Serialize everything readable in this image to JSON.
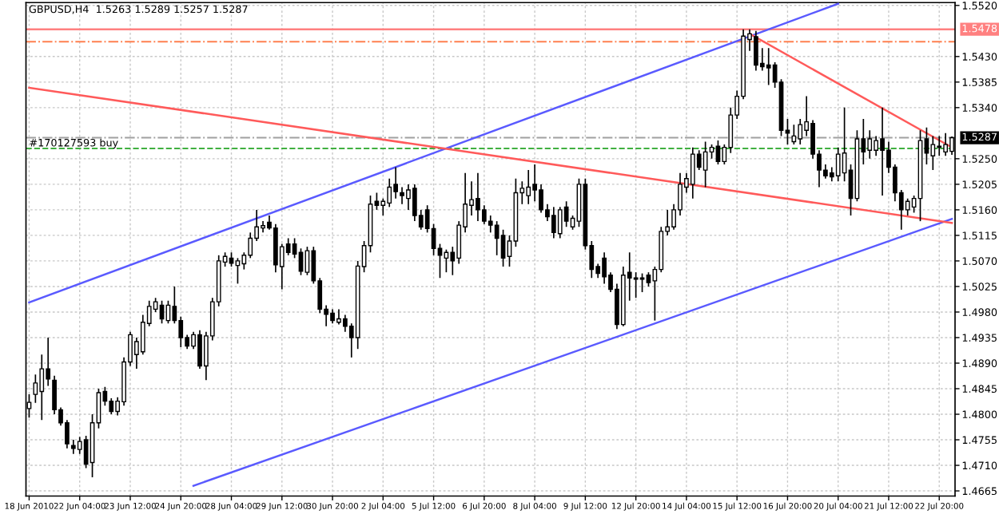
{
  "chart_data": {
    "type": "candlestick",
    "title": "GBPUSD,H4  1.5263 1.5289 1.5257 1.5287",
    "categories": [
      "18 Jun 2010",
      null,
      null,
      null,
      null,
      null,
      null,
      null,
      "22 Jun 04:00",
      null,
      null,
      null,
      null,
      null,
      null,
      null,
      "23 Jun 12:00",
      null,
      null,
      null,
      null,
      null,
      null,
      null,
      "24 Jun 20:00",
      null,
      null,
      null,
      null,
      null,
      null,
      null,
      "28 Jun 04:00",
      null,
      null,
      null,
      null,
      null,
      null,
      null,
      "29 Jun 12:00",
      null,
      null,
      null,
      null,
      null,
      null,
      null,
      "30 Jun 20:00",
      null,
      null,
      null,
      null,
      null,
      null,
      null,
      "2 Jul 04:00",
      null,
      null,
      null,
      null,
      null,
      null,
      null,
      "5 Jul 12:00",
      null,
      null,
      null,
      null,
      null,
      null,
      null,
      "6 Jul 20:00",
      null,
      null,
      null,
      null,
      null,
      null,
      null,
      "8 Jul 04:00",
      null,
      null,
      null,
      null,
      null,
      null,
      null,
      "9 Jul 12:00",
      null,
      null,
      null,
      null,
      null,
      null,
      null,
      "12 Jul 20:00",
      null,
      null,
      null,
      null,
      null,
      null,
      null,
      "14 Jul 04:00",
      null,
      null,
      null,
      null,
      null,
      null,
      null,
      "15 Jul 12:00",
      null,
      null,
      null,
      null,
      null,
      null,
      null,
      "16 Jul 20:00",
      null,
      null,
      null,
      null,
      null,
      null,
      null,
      "20 Jul 04:00",
      null,
      null,
      null,
      null,
      null,
      null,
      null,
      "21 Jul 12:00",
      null,
      null,
      null,
      null,
      null,
      null,
      null,
      "22 Jul 20:00",
      null,
      null
    ],
    "ohlc": [
      [
        1.481,
        1.4835,
        1.4794,
        1.4821
      ],
      [
        1.4835,
        1.487,
        1.482,
        1.4855
      ],
      [
        1.484,
        1.4905,
        1.479,
        1.488
      ],
      [
        1.488,
        1.4935,
        1.485,
        1.4862
      ],
      [
        1.486,
        1.4868,
        1.48,
        1.4808
      ],
      [
        1.4808,
        1.4812,
        1.478,
        1.4785
      ],
      [
        1.4785,
        1.479,
        1.474,
        1.4748
      ],
      [
        1.4745,
        1.4755,
        1.473,
        1.474
      ],
      [
        1.4738,
        1.476,
        1.473,
        1.4752
      ],
      [
        1.4755,
        1.4762,
        1.4705,
        1.4712
      ],
      [
        1.4715,
        1.48,
        1.4689,
        1.4785
      ],
      [
        1.4785,
        1.4845,
        1.4775,
        1.4838
      ],
      [
        1.484,
        1.4848,
        1.4815,
        1.4823
      ],
      [
        1.4823,
        1.4828,
        1.48,
        1.4805
      ],
      [
        1.4805,
        1.483,
        1.4798,
        1.4823
      ],
      [
        1.4822,
        1.49,
        1.4815,
        1.4892
      ],
      [
        1.4892,
        1.4945,
        1.4885,
        1.494
      ],
      [
        1.4905,
        1.4935,
        1.488,
        1.4928
      ],
      [
        1.491,
        1.4975,
        1.4905,
        1.4962
      ],
      [
        1.496,
        1.5,
        1.4955,
        1.499
      ],
      [
        1.4985,
        1.5005,
        1.498,
        1.4998
      ],
      [
        1.4992,
        1.5,
        1.496,
        1.4968
      ],
      [
        1.4965,
        1.5,
        1.496,
        1.4992
      ],
      [
        1.499,
        1.5025,
        1.496,
        1.4965
      ],
      [
        1.4965,
        1.4972,
        1.4918,
        1.4935
      ],
      [
        1.4935,
        1.494,
        1.4915,
        1.492
      ],
      [
        1.492,
        1.4945,
        1.4915,
        1.494
      ],
      [
        1.494,
        1.4948,
        1.488,
        1.4885
      ],
      [
        1.4885,
        1.4945,
        1.486,
        1.4938
      ],
      [
        1.4938,
        1.5005,
        1.493,
        1.4998
      ],
      [
        1.4998,
        1.508,
        1.499,
        1.507
      ],
      [
        1.5068,
        1.5085,
        1.506,
        1.5078
      ],
      [
        1.5075,
        1.5085,
        1.506,
        1.5066
      ],
      [
        1.5062,
        1.5075,
        1.503,
        1.507
      ],
      [
        1.5065,
        1.5085,
        1.5055,
        1.508
      ],
      [
        1.508,
        1.512,
        1.5075,
        1.511
      ],
      [
        1.511,
        1.516,
        1.5105,
        1.513
      ],
      [
        1.5128,
        1.514,
        1.512,
        1.5132
      ],
      [
        1.5138,
        1.515,
        1.5125,
        1.5128
      ],
      [
        1.5128,
        1.5135,
        1.505,
        1.5063
      ],
      [
        1.506,
        1.51,
        1.502,
        1.5095
      ],
      [
        1.51,
        1.511,
        1.508,
        1.5085
      ],
      [
        1.51,
        1.511,
        1.5075,
        1.5082
      ],
      [
        1.5085,
        1.5092,
        1.5045,
        1.5052
      ],
      [
        1.505,
        1.5095,
        1.5045,
        1.5088
      ],
      [
        1.5088,
        1.5095,
        1.503,
        1.5035
      ],
      [
        1.5035,
        1.504,
        1.4978,
        1.4985
      ],
      [
        1.4985,
        1.4992,
        1.4955,
        1.4976
      ],
      [
        1.4978,
        1.4985,
        1.496,
        1.4965
      ],
      [
        1.4962,
        1.4985,
        1.4958,
        1.4968
      ],
      [
        1.4968,
        1.4975,
        1.4945,
        1.4955
      ],
      [
        1.4955,
        1.496,
        1.49,
        1.4935
      ],
      [
        1.4935,
        1.507,
        1.4915,
        1.5061
      ],
      [
        1.506,
        1.5105,
        1.505,
        1.5097
      ],
      [
        1.5097,
        1.5185,
        1.5085,
        1.517
      ],
      [
        1.5175,
        1.519,
        1.516,
        1.5168
      ],
      [
        1.5168,
        1.518,
        1.515,
        1.5175
      ],
      [
        1.5172,
        1.5215,
        1.5165,
        1.52
      ],
      [
        1.5205,
        1.5235,
        1.518,
        1.5192
      ],
      [
        1.519,
        1.52,
        1.517,
        1.5185
      ],
      [
        1.518,
        1.5205,
        1.516,
        1.5195
      ],
      [
        1.5198,
        1.5205,
        1.514,
        1.515
      ],
      [
        1.515,
        1.516,
        1.5125,
        1.513
      ],
      [
        1.516,
        1.5168,
        1.512,
        1.5127
      ],
      [
        1.5127,
        1.5135,
        1.508,
        1.5092
      ],
      [
        1.5092,
        1.51,
        1.504,
        1.508
      ],
      [
        1.5075,
        1.509,
        1.505,
        1.5085
      ],
      [
        1.5085,
        1.5095,
        1.5045,
        1.507
      ],
      [
        1.5075,
        1.514,
        1.5065,
        1.5133
      ],
      [
        1.513,
        1.5225,
        1.512,
        1.517
      ],
      [
        1.5168,
        1.521,
        1.515,
        1.5178
      ],
      [
        1.518,
        1.5225,
        1.514,
        1.516
      ],
      [
        1.516,
        1.5168,
        1.5135,
        1.514
      ],
      [
        1.514,
        1.515,
        1.512,
        1.5133
      ],
      [
        1.5133,
        1.514,
        1.508,
        1.511
      ],
      [
        1.5115,
        1.5125,
        1.506,
        1.5075
      ],
      [
        1.5078,
        1.5115,
        1.506,
        1.5105
      ],
      [
        1.5105,
        1.5215,
        1.5095,
        1.519
      ],
      [
        1.519,
        1.521,
        1.517,
        1.5198
      ],
      [
        1.5185,
        1.523,
        1.517,
        1.52
      ],
      [
        1.5205,
        1.524,
        1.5175,
        1.5195
      ],
      [
        1.5195,
        1.5205,
        1.5155,
        1.516
      ],
      [
        1.516,
        1.517,
        1.514,
        1.5148
      ],
      [
        1.515,
        1.5165,
        1.511,
        1.512
      ],
      [
        1.5118,
        1.5165,
        1.511,
        1.516
      ],
      [
        1.5165,
        1.5175,
        1.513,
        1.514
      ],
      [
        1.513,
        1.515,
        1.5125,
        1.5145
      ],
      [
        1.514,
        1.5215,
        1.513,
        1.5205
      ],
      [
        1.5205,
        1.5215,
        1.509,
        1.5097
      ],
      [
        1.5097,
        1.5105,
        1.504,
        1.5055
      ],
      [
        1.506,
        1.5065,
        1.504,
        1.5048
      ],
      [
        1.5075,
        1.5085,
        1.503,
        1.5042
      ],
      [
        1.5045,
        1.505,
        1.5015,
        1.502
      ],
      [
        1.502,
        1.503,
        1.495,
        1.4958
      ],
      [
        1.4958,
        1.506,
        1.4955,
        1.5045
      ],
      [
        1.505,
        1.5085,
        1.5,
        1.504
      ],
      [
        1.504,
        1.505,
        1.5005,
        1.5038
      ],
      [
        1.5038,
        1.5048,
        1.5015,
        1.504
      ],
      [
        1.5045,
        1.505,
        1.5025,
        1.5032
      ],
      [
        1.5035,
        1.506,
        1.4965,
        1.5055
      ],
      [
        1.5055,
        1.513,
        1.505,
        1.5122
      ],
      [
        1.5122,
        1.516,
        1.5115,
        1.513
      ],
      [
        1.513,
        1.517,
        1.5125,
        1.516
      ],
      [
        1.516,
        1.5225,
        1.515,
        1.5205
      ],
      [
        1.52,
        1.5225,
        1.519,
        1.5215
      ],
      [
        1.5205,
        1.527,
        1.518,
        1.5258
      ],
      [
        1.5258,
        1.5265,
        1.523,
        1.5235
      ],
      [
        1.523,
        1.528,
        1.52,
        1.5262
      ],
      [
        1.5262,
        1.5275,
        1.525,
        1.527
      ],
      [
        1.5272,
        1.5282,
        1.524,
        1.5245
      ],
      [
        1.5245,
        1.5275,
        1.524,
        1.527
      ],
      [
        1.527,
        1.534,
        1.526,
        1.5327
      ],
      [
        1.5327,
        1.537,
        1.532,
        1.536
      ],
      [
        1.536,
        1.5478,
        1.5355,
        1.5466
      ],
      [
        1.546,
        1.5478,
        1.544,
        1.547
      ],
      [
        1.5465,
        1.5475,
        1.5405,
        1.5415
      ],
      [
        1.5418,
        1.5445,
        1.5405,
        1.5412
      ],
      [
        1.5415,
        1.5445,
        1.538,
        1.541
      ],
      [
        1.5415,
        1.542,
        1.5375,
        1.5385
      ],
      [
        1.5385,
        1.539,
        1.529,
        1.53
      ],
      [
        1.53,
        1.532,
        1.5275,
        1.5295
      ],
      [
        1.528,
        1.531,
        1.5275,
        1.529
      ],
      [
        1.5285,
        1.532,
        1.5275,
        1.531
      ],
      [
        1.53,
        1.536,
        1.529,
        1.5315
      ],
      [
        1.5312,
        1.5318,
        1.525,
        1.5258
      ],
      [
        1.5258,
        1.5265,
        1.52,
        1.523
      ],
      [
        1.523,
        1.524,
        1.5215,
        1.522
      ],
      [
        1.5225,
        1.5235,
        1.521,
        1.5218
      ],
      [
        1.522,
        1.527,
        1.521,
        1.5258
      ],
      [
        1.5225,
        1.534,
        1.521,
        1.526
      ],
      [
        1.523,
        1.524,
        1.515,
        1.518
      ],
      [
        1.518,
        1.53,
        1.5175,
        1.5285
      ],
      [
        1.5285,
        1.532,
        1.524,
        1.5262
      ],
      [
        1.5265,
        1.53,
        1.525,
        1.5285
      ],
      [
        1.5265,
        1.529,
        1.5255,
        1.5282
      ],
      [
        1.5285,
        1.534,
        1.5185,
        1.5265
      ],
      [
        1.5265,
        1.528,
        1.5225,
        1.5235
      ],
      [
        1.5235,
        1.524,
        1.5175,
        1.519
      ],
      [
        1.519,
        1.5195,
        1.5125,
        1.516
      ],
      [
        1.516,
        1.518,
        1.515,
        1.5175
      ],
      [
        1.5165,
        1.5185,
        1.5155,
        1.518
      ],
      [
        1.518,
        1.53,
        1.514,
        1.5282
      ],
      [
        1.5285,
        1.5305,
        1.524,
        1.526
      ],
      [
        1.5255,
        1.529,
        1.523,
        1.5275
      ],
      [
        1.5272,
        1.529,
        1.5255,
        1.527
      ],
      [
        1.5262,
        1.5295,
        1.5255,
        1.5275
      ],
      [
        1.5263,
        1.5289,
        1.5257,
        1.5287
      ]
    ],
    "series": [
      {
        "type": "line",
        "values": [
          1.4997,
          null,
          null,
          null,
          null,
          null,
          null,
          null,
          null,
          null,
          null,
          null,
          null,
          null,
          null,
          null,
          null,
          null,
          null,
          null,
          null,
          null,
          null,
          null,
          null,
          null,
          null,
          null,
          null,
          null,
          null,
          null,
          null,
          null,
          null,
          null,
          null,
          null,
          null,
          null,
          null,
          null,
          null,
          null,
          null,
          null,
          null,
          null,
          null,
          null,
          null,
          null,
          null,
          null,
          null,
          null,
          null,
          null,
          null,
          null,
          null,
          null,
          null,
          null,
          null,
          null,
          null,
          null,
          null,
          null,
          null,
          null,
          null,
          null,
          null,
          null,
          null,
          null,
          null,
          null,
          null,
          null,
          null,
          null,
          null,
          null,
          null,
          null,
          null,
          null,
          null,
          null,
          null,
          null,
          null,
          null,
          null,
          null,
          null,
          null,
          null,
          null,
          null,
          null,
          null,
          null,
          null,
          null,
          null,
          null,
          null,
          null,
          null,
          null,
          null,
          null,
          null,
          null,
          null,
          null,
          null,
          null,
          null,
          null,
          null,
          null,
          null,
          null,
          1.5523,
          null,
          null,
          null,
          null,
          null,
          null,
          null,
          null,
          null,
          null,
          null,
          null,
          null,
          null,
          null,
          null,
          null,
          null
        ],
        "color": "#5a5aff"
      },
      {
        "type": "line",
        "values": [
          null,
          null,
          null,
          null,
          null,
          null,
          null,
          null,
          null,
          null,
          null,
          null,
          null,
          null,
          null,
          null,
          null,
          null,
          null,
          null,
          null,
          null,
          null,
          null,
          null,
          null,
          1.4674,
          null,
          null,
          null,
          null,
          null,
          null,
          null,
          null,
          null,
          null,
          null,
          null,
          null,
          null,
          null,
          null,
          null,
          null,
          null,
          null,
          null,
          null,
          null,
          null,
          null,
          null,
          null,
          null,
          null,
          null,
          null,
          null,
          null,
          null,
          null,
          null,
          null,
          null,
          null,
          null,
          null,
          null,
          null,
          null,
          null,
          null,
          null,
          null,
          null,
          null,
          null,
          null,
          null,
          null,
          null,
          null,
          null,
          null,
          null,
          null,
          null,
          null,
          null,
          null,
          null,
          null,
          null,
          null,
          null,
          null,
          null,
          null,
          null,
          null,
          null,
          null,
          null,
          null,
          null,
          null,
          null,
          null,
          null,
          null,
          null,
          null,
          null,
          null,
          null,
          null,
          null,
          null,
          null,
          null,
          null,
          null,
          null,
          null,
          null,
          null,
          null,
          null,
          null,
          null,
          null,
          null,
          null,
          null,
          null,
          null,
          null,
          null,
          null,
          null,
          null,
          null,
          null,
          null,
          null,
          1.5144
        ],
        "color": "#5a5aff"
      },
      {
        "type": "line",
        "values": [
          1.5375,
          null,
          null,
          null,
          null,
          null,
          null,
          null,
          null,
          null,
          null,
          null,
          null,
          null,
          null,
          null,
          null,
          null,
          null,
          null,
          null,
          null,
          null,
          null,
          null,
          null,
          null,
          null,
          null,
          null,
          null,
          null,
          null,
          null,
          null,
          null,
          null,
          null,
          null,
          null,
          null,
          null,
          null,
          null,
          null,
          null,
          null,
          null,
          null,
          null,
          null,
          null,
          null,
          null,
          null,
          null,
          null,
          null,
          null,
          null,
          null,
          null,
          null,
          null,
          null,
          null,
          null,
          null,
          null,
          null,
          null,
          null,
          null,
          null,
          null,
          null,
          null,
          null,
          null,
          null,
          null,
          null,
          null,
          null,
          null,
          null,
          null,
          null,
          null,
          null,
          null,
          null,
          null,
          null,
          null,
          null,
          null,
          null,
          null,
          null,
          null,
          null,
          null,
          null,
          null,
          null,
          null,
          null,
          null,
          null,
          null,
          null,
          null,
          null,
          null,
          null,
          null,
          null,
          null,
          null,
          null,
          null,
          null,
          null,
          null,
          null,
          null,
          null,
          null,
          null,
          null,
          null,
          null,
          null,
          null,
          null,
          null,
          null,
          null,
          null,
          null,
          null,
          null,
          null,
          null,
          null,
          1.5137
        ],
        "color": "#ff5a5a"
      },
      {
        "type": "line",
        "values": [
          null,
          null,
          null,
          null,
          null,
          null,
          null,
          null,
          null,
          null,
          null,
          null,
          null,
          null,
          null,
          null,
          null,
          null,
          null,
          null,
          null,
          null,
          null,
          null,
          null,
          null,
          null,
          null,
          null,
          null,
          null,
          null,
          null,
          null,
          null,
          null,
          null,
          null,
          null,
          null,
          null,
          null,
          null,
          null,
          null,
          null,
          null,
          null,
          null,
          null,
          null,
          null,
          null,
          null,
          null,
          null,
          null,
          null,
          null,
          null,
          null,
          null,
          null,
          null,
          null,
          null,
          null,
          null,
          null,
          null,
          null,
          null,
          null,
          null,
          null,
          null,
          null,
          null,
          null,
          null,
          null,
          null,
          null,
          null,
          null,
          null,
          null,
          null,
          null,
          null,
          null,
          null,
          null,
          null,
          null,
          null,
          null,
          null,
          null,
          null,
          null,
          null,
          null,
          null,
          null,
          null,
          null,
          null,
          null,
          null,
          null,
          null,
          null,
          null,
          1.547,
          null,
          null,
          null,
          null,
          null,
          null,
          null,
          null,
          null,
          null,
          null,
          null,
          null,
          null,
          null,
          null,
          null,
          null,
          null,
          null,
          null,
          null,
          null,
          null,
          null,
          null,
          null,
          null,
          null,
          null,
          null,
          1.527
        ],
        "color": "#ff5a5a"
      }
    ],
    "ref_lines": [
      {
        "axis": "y",
        "value": 1.5478,
        "label": "1.5478",
        "color": "#ff8080",
        "line_style": "solid"
      },
      {
        "axis": "y",
        "value": 1.5456,
        "color": "#ff8050",
        "line_style": "dashdot"
      },
      {
        "axis": "y",
        "value": 1.5287,
        "label": "1.5287",
        "color": "#a0a0a0",
        "line_style": "dashdot"
      },
      {
        "axis": "y",
        "value": 1.5268,
        "label": "#170127593 buy",
        "color": "#40b040",
        "line_style": "dashed"
      }
    ],
    "ylim": [
      1.4656,
      1.5525
    ],
    "yticks": [
      1.4665,
      {
        "value": 1.471,
        "label": "1.4710"
      },
      1.4755,
      {
        "value": 1.48,
        "label": "1.4800"
      },
      1.4845,
      {
        "value": 1.489,
        "label": "1.4890"
      },
      1.4935,
      {
        "value": 1.498,
        "label": "1.4980"
      },
      1.5025,
      {
        "value": 1.507,
        "label": "1.5070"
      },
      1.5115,
      {
        "value": 1.516,
        "label": "1.5160"
      },
      1.5205,
      {
        "value": 1.525,
        "label": "1.5250"
      },
      {
        "value": 1.534,
        "label": "1.5340"
      },
      1.5385,
      {
        "value": 1.543,
        "label": "1.5430"
      },
      {
        "value": 1.552,
        "label": "1.5520"
      }
    ],
    "grid": true
  }
}
